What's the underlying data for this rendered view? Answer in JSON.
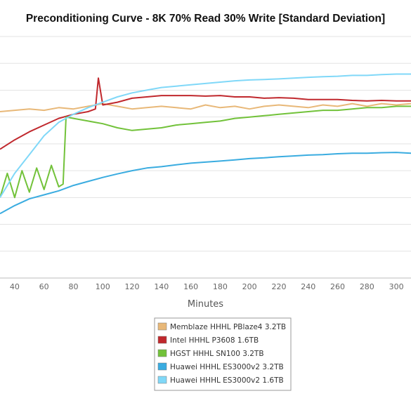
{
  "chart_data": {
    "type": "line",
    "title": "Preconditioning Curve - 8K 70% Read 30% Write [Standard Deviation]",
    "xlabel": "Minutes",
    "ylabel": "",
    "xlim": [
      30,
      310
    ],
    "ylim": [
      0,
      9
    ],
    "x_ticks": [
      40,
      60,
      80,
      100,
      120,
      140,
      160,
      180,
      200,
      220,
      240,
      260,
      280,
      300
    ],
    "grid": "horizontal",
    "legend_position": "bottom-center",
    "series": [
      {
        "name": "Memblaze HHHL PBlaze4 3.2TB",
        "color": "#e8b878",
        "x": [
          30,
          40,
          50,
          60,
          70,
          80,
          90,
          100,
          110,
          120,
          130,
          140,
          150,
          160,
          170,
          180,
          190,
          200,
          210,
          220,
          230,
          240,
          250,
          260,
          270,
          280,
          290,
          300,
          310
        ],
        "values": [
          6.2,
          6.25,
          6.3,
          6.25,
          6.35,
          6.3,
          6.4,
          6.5,
          6.4,
          6.3,
          6.35,
          6.4,
          6.35,
          6.3,
          6.45,
          6.35,
          6.4,
          6.3,
          6.4,
          6.45,
          6.4,
          6.35,
          6.45,
          6.4,
          6.5,
          6.4,
          6.5,
          6.45,
          6.5
        ]
      },
      {
        "name": "Intel HHHL P3608 1.6TB",
        "color": "#c0282d",
        "x": [
          30,
          40,
          50,
          60,
          70,
          80,
          90,
          95,
          97,
          100,
          110,
          120,
          130,
          140,
          150,
          160,
          170,
          180,
          190,
          200,
          210,
          220,
          230,
          240,
          250,
          260,
          270,
          280,
          290,
          300,
          310
        ],
        "values": [
          4.8,
          5.15,
          5.45,
          5.7,
          5.95,
          6.1,
          6.2,
          6.3,
          7.45,
          6.45,
          6.55,
          6.7,
          6.75,
          6.8,
          6.8,
          6.8,
          6.78,
          6.8,
          6.75,
          6.75,
          6.7,
          6.72,
          6.7,
          6.65,
          6.65,
          6.65,
          6.62,
          6.6,
          6.62,
          6.6,
          6.6
        ]
      },
      {
        "name": "HGST HHHL SN100 3.2TB",
        "color": "#72c23a",
        "x": [
          30,
          35,
          40,
          45,
          50,
          55,
          60,
          65,
          70,
          73,
          75,
          80,
          90,
          100,
          110,
          120,
          130,
          140,
          150,
          160,
          170,
          180,
          190,
          200,
          210,
          220,
          230,
          240,
          250,
          260,
          270,
          280,
          290,
          300,
          310
        ],
        "values": [
          3.0,
          3.9,
          3.0,
          4.0,
          3.2,
          4.1,
          3.3,
          4.2,
          3.4,
          3.5,
          6.0,
          5.95,
          5.85,
          5.75,
          5.6,
          5.5,
          5.55,
          5.6,
          5.7,
          5.75,
          5.8,
          5.85,
          5.95,
          6.0,
          6.05,
          6.1,
          6.15,
          6.2,
          6.25,
          6.25,
          6.3,
          6.35,
          6.35,
          6.4,
          6.4
        ]
      },
      {
        "name": "Huawei HHHL ES3000v2 3.2TB",
        "color": "#3aace0",
        "x": [
          30,
          40,
          50,
          60,
          70,
          80,
          90,
          100,
          110,
          120,
          130,
          140,
          150,
          160,
          170,
          180,
          190,
          200,
          210,
          220,
          230,
          240,
          250,
          260,
          270,
          280,
          290,
          300,
          310
        ],
        "values": [
          2.4,
          2.7,
          2.95,
          3.1,
          3.25,
          3.45,
          3.6,
          3.75,
          3.88,
          4.0,
          4.1,
          4.15,
          4.22,
          4.28,
          4.32,
          4.36,
          4.4,
          4.45,
          4.48,
          4.52,
          4.55,
          4.58,
          4.6,
          4.63,
          4.65,
          4.65,
          4.67,
          4.68,
          4.65
        ]
      },
      {
        "name": "Huawei HHHL ES3000v2 1.6TB",
        "color": "#80d8f8",
        "x": [
          30,
          40,
          50,
          60,
          70,
          80,
          90,
          100,
          110,
          120,
          130,
          140,
          150,
          160,
          170,
          180,
          190,
          200,
          210,
          220,
          230,
          240,
          250,
          260,
          270,
          280,
          290,
          300,
          310
        ],
        "values": [
          3.0,
          3.9,
          4.6,
          5.3,
          5.8,
          6.1,
          6.35,
          6.55,
          6.75,
          6.9,
          7.0,
          7.1,
          7.15,
          7.2,
          7.25,
          7.3,
          7.35,
          7.38,
          7.4,
          7.42,
          7.45,
          7.48,
          7.5,
          7.52,
          7.55,
          7.55,
          7.58,
          7.6,
          7.6
        ]
      }
    ]
  }
}
